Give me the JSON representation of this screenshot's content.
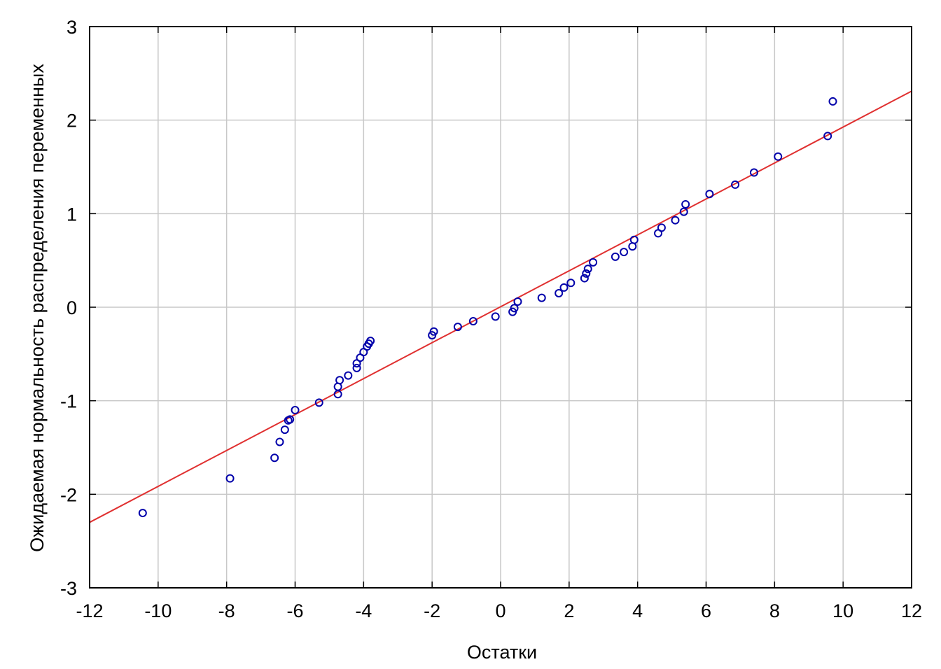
{
  "chart_data": {
    "type": "scatter",
    "title": "",
    "xlabel": "Остатки",
    "ylabel": "Ожидаемая нормальность распределения переменных",
    "xlim": [
      -12,
      12
    ],
    "ylim": [
      -3,
      3
    ],
    "x_ticks": [
      -12,
      -10,
      -8,
      -6,
      -4,
      -2,
      0,
      2,
      4,
      6,
      8,
      10,
      12
    ],
    "y_ticks": [
      -3,
      -2,
      -1,
      0,
      1,
      2,
      3
    ],
    "grid": true,
    "colors": {
      "points": "#0000aa",
      "line": "#e03030",
      "grid": "#c8c8c8",
      "frame": "#000000"
    },
    "trend_line": {
      "x": [
        -12,
        12
      ],
      "y": [
        -2.3,
        2.31
      ]
    },
    "series": [
      {
        "x": [
          -10.45,
          -7.9,
          -6.6,
          -6.45,
          -6.3,
          -6.2,
          -6.15,
          -6.0,
          -5.3,
          -4.75,
          -4.75,
          -4.7,
          -4.45,
          -4.2,
          -4.2,
          -4.1,
          -4.0,
          -3.9,
          -3.85,
          -3.8,
          -2.0,
          -1.95,
          -1.25,
          -0.8,
          -0.15,
          0.35,
          0.4,
          0.5,
          1.2,
          1.7,
          1.85,
          2.05,
          2.45,
          2.5,
          2.55,
          2.7,
          3.35,
          3.6,
          3.85,
          3.9,
          4.6,
          4.7,
          5.1,
          5.35,
          5.4,
          6.1,
          6.85,
          7.4,
          8.1,
          9.55,
          9.7
        ],
        "y": [
          -2.2,
          -1.83,
          -1.61,
          -1.44,
          -1.31,
          -1.21,
          -1.2,
          -1.1,
          -1.02,
          -0.93,
          -0.85,
          -0.78,
          -0.73,
          -0.65,
          -0.6,
          -0.54,
          -0.48,
          -0.42,
          -0.39,
          -0.36,
          -0.3,
          -0.26,
          -0.21,
          -0.15,
          -0.1,
          -0.05,
          -0.01,
          0.06,
          0.1,
          0.15,
          0.21,
          0.26,
          0.31,
          0.36,
          0.41,
          0.48,
          0.54,
          0.59,
          0.65,
          0.72,
          0.79,
          0.85,
          0.93,
          1.02,
          1.1,
          1.21,
          1.31,
          1.44,
          1.61,
          1.83,
          2.2
        ]
      }
    ]
  }
}
